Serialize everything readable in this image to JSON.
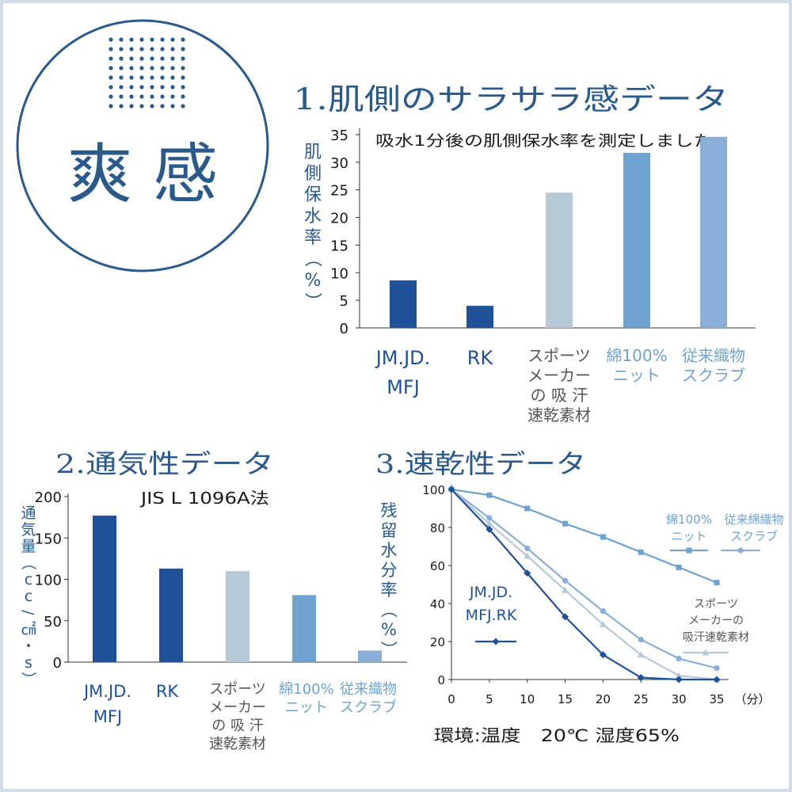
{
  "badge": {
    "label": "爽 感",
    "ring_color": "#2a5a8c"
  },
  "colors": {
    "title": "#2a5a8c",
    "jm": "#1f5199",
    "rk": "#1f5199",
    "sports": "#b6c9d6",
    "cotton": "#6ea3cf",
    "scrub": "#8aaed8",
    "dark_text": "#1a1a1a",
    "gray_text": "#555555",
    "axis": "#333333"
  },
  "chart_data": [
    {
      "type": "bar",
      "title": "1.肌側のサラサラ感データ",
      "subtitle": "吸水1分後の肌側保水率を測定しました。",
      "ylabel": "肌側保水率（%）",
      "ylim": [
        0,
        35
      ],
      "yticks": [
        0,
        5,
        10,
        15,
        20,
        25,
        30,
        35
      ],
      "categories": [
        {
          "lines": [
            "JM.JD.",
            "MFJ"
          ],
          "color": "jm",
          "label_color": "jm"
        },
        {
          "lines": [
            "RK"
          ],
          "color": "rk",
          "label_color": "jm"
        },
        {
          "lines": [
            "スポーツ",
            "メーカー",
            "の 吸 汗",
            "速乾素材"
          ],
          "color": "sports",
          "label_color": "gray_text"
        },
        {
          "lines": [
            "綿100%",
            "ニット"
          ],
          "color": "cotton",
          "label_color": "cotton"
        },
        {
          "lines": [
            "従来織物",
            "スクラブ"
          ],
          "color": "scrub",
          "label_color": "cotton"
        }
      ],
      "values": [
        8.6,
        4.0,
        24.5,
        31.7,
        34.6
      ]
    },
    {
      "type": "bar",
      "title": "2.通気性データ",
      "subtitle": "JIS L 1096A法",
      "ylabel": "通気量（cc/㎠・s）",
      "ylim": [
        0,
        200
      ],
      "yticks": [
        0,
        50,
        100,
        150,
        200
      ],
      "categories": [
        {
          "lines": [
            "JM.JD.",
            "MFJ"
          ],
          "color": "jm",
          "label_color": "jm"
        },
        {
          "lines": [
            "RK"
          ],
          "color": "rk",
          "label_color": "jm"
        },
        {
          "lines": [
            "スポーツ",
            "メーカー",
            "の 吸 汗",
            "速乾素材"
          ],
          "color": "sports",
          "label_color": "gray_text"
        },
        {
          "lines": [
            "綿100%",
            "ニット"
          ],
          "color": "cotton",
          "label_color": "cotton"
        },
        {
          "lines": [
            "従来織物",
            "スクラブ"
          ],
          "color": "scrub",
          "label_color": "cotton"
        }
      ],
      "values": [
        177,
        113,
        110,
        81,
        14
      ]
    },
    {
      "type": "line",
      "title": "3.速乾性データ",
      "ylabel": "残留水分率（%）",
      "xlim": [
        0,
        35
      ],
      "ylim": [
        0,
        100
      ],
      "xticks": [
        0,
        5,
        10,
        15,
        20,
        25,
        30,
        35
      ],
      "yticks": [
        0,
        20,
        40,
        60,
        80,
        100
      ],
      "x_unit": "（分）",
      "note": "環境:温度　20℃ 湿度65%",
      "series": [
        {
          "name": "綿100%ニット",
          "color": "cotton",
          "marker": "square",
          "x": [
            0,
            5,
            10,
            15,
            20,
            25,
            30,
            35
          ],
          "y": [
            100,
            97,
            90,
            82,
            75,
            67,
            59,
            51
          ]
        },
        {
          "name": "従来綿織物スクラブ",
          "color": "scrub",
          "marker": "circle",
          "x": [
            0,
            5,
            10,
            15,
            20,
            25,
            30,
            35
          ],
          "y": [
            100,
            85,
            69,
            52,
            36,
            21,
            11,
            6
          ]
        },
        {
          "name": "スポーツメーカーの吸汗速乾素材",
          "color": "sports",
          "marker": "triangle",
          "x": [
            0,
            5,
            10,
            15,
            20,
            25,
            30,
            35
          ],
          "y": [
            100,
            82,
            65,
            47,
            29,
            13,
            2,
            0
          ]
        },
        {
          "name": "JM.JD.MFJ.RK",
          "color": "jm",
          "marker": "diamond",
          "x": [
            0,
            5,
            10,
            15,
            20,
            25,
            30,
            35
          ],
          "y": [
            100,
            79,
            56,
            33,
            13,
            1,
            0,
            0
          ]
        }
      ],
      "legend": [
        {
          "lines": [
            "綿100%",
            "ニット"
          ],
          "series": 0
        },
        {
          "lines": [
            "従来綿織物",
            "スクラブ"
          ],
          "series": 1
        },
        {
          "lines": [
            "スポーツ",
            "メーカーの",
            "吸汗速乾素材"
          ],
          "series": 2
        },
        {
          "lines": [
            "JM.JD.",
            "MFJ.RK"
          ],
          "series": 3
        }
      ]
    }
  ]
}
